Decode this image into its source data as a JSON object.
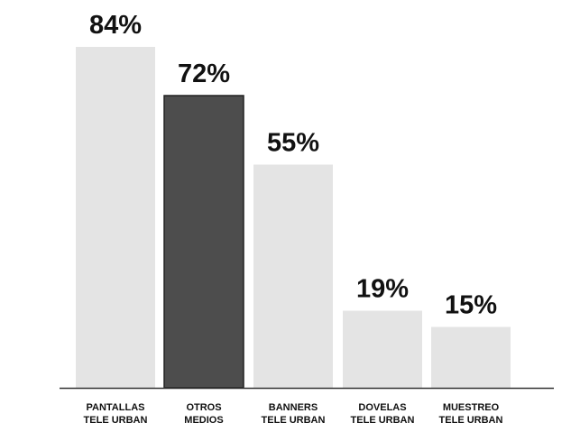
{
  "chart_data": {
    "type": "bar",
    "categories": [
      [
        "PANTALLAS",
        "TELE URBAN"
      ],
      [
        "OTROS",
        "MEDIOS"
      ],
      [
        "BANNERS",
        "TELE URBAN"
      ],
      [
        "DOVELAS",
        "TELE URBAN"
      ],
      [
        "MUESTREO",
        "TELE URBAN"
      ]
    ],
    "values": [
      84,
      72,
      55,
      19,
      15
    ],
    "value_labels": [
      "84%",
      "72%",
      "55%",
      "19%",
      "15%"
    ],
    "unit": "%",
    "ylim": [
      0,
      84
    ],
    "grid": false,
    "legend": "none",
    "colors": {
      "default_bar": "#e4e4e4",
      "highlight_bar": "#4d4d4d",
      "highlight_index": 1,
      "baseline": "#333333",
      "text": "#111111"
    }
  }
}
